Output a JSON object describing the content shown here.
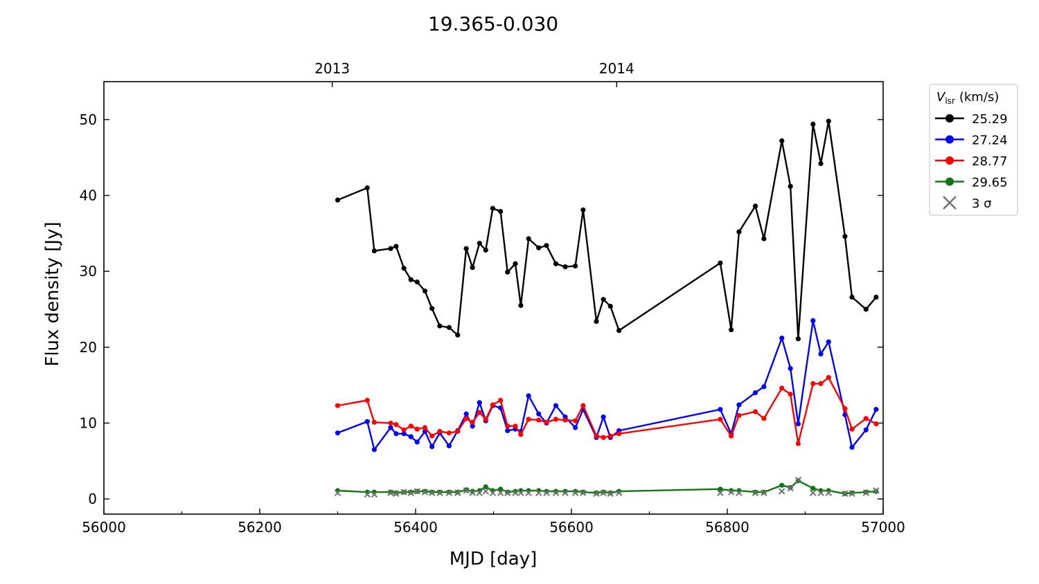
{
  "chart_data": {
    "type": "line",
    "title": "19.365-0.030",
    "xlabel": "MJD [day]",
    "ylabel": "Flux density [Jy]",
    "xlim": [
      56000,
      57000
    ],
    "ylim": [
      -2,
      55
    ],
    "xticks": [
      "56000",
      "56200",
      "56400",
      "56600",
      "56800",
      "57000"
    ],
    "yticks": [
      "0",
      "10",
      "20",
      "30",
      "40",
      "50"
    ],
    "top_axis": {
      "ticks": [
        "2013",
        "2014"
      ],
      "tick_x": [
        56293,
        56658
      ]
    },
    "grid": false,
    "legend": {
      "placement": "outside-right",
      "title_v": "V",
      "title_sub": "lsr",
      "title_units": "(km/s)",
      "sigma_label": "3 σ"
    },
    "x": [
      56300,
      56338,
      56347,
      56368,
      56375,
      56385,
      56394,
      56402,
      56412,
      56421,
      56431,
      56443,
      56454,
      56465,
      56473,
      56482,
      56490,
      56499,
      56509,
      56518,
      56528,
      56535,
      56545,
      56558,
      56568,
      56580,
      56592,
      56605,
      56615,
      56632,
      56641,
      56650,
      56661,
      56791,
      56805,
      56815,
      56836,
      56847,
      56870,
      56881,
      56891,
      56910,
      56920,
      56930,
      56951,
      56960,
      56978,
      56991
    ],
    "series": [
      {
        "name": "25.29",
        "color": "#000000",
        "values": [
          39.4,
          41.0,
          32.7,
          33.0,
          33.3,
          30.4,
          28.9,
          28.6,
          27.4,
          25.1,
          22.8,
          22.6,
          21.6,
          33.0,
          30.5,
          33.7,
          32.8,
          38.3,
          37.9,
          29.9,
          31.0,
          25.5,
          34.3,
          33.1,
          33.4,
          31.0,
          30.6,
          30.7,
          38.1,
          23.4,
          26.3,
          25.4,
          22.2,
          31.1,
          22.3,
          35.2,
          38.6,
          34.3,
          47.2,
          41.2,
          21.1,
          49.4,
          44.2,
          49.8,
          34.6,
          26.6,
          25.0,
          26.6
        ]
      },
      {
        "name": "27.24",
        "color": "#0000ff",
        "values": [
          8.7,
          10.2,
          6.5,
          9.4,
          8.6,
          8.6,
          8.2,
          7.5,
          8.9,
          6.9,
          8.7,
          7.0,
          9.0,
          11.2,
          9.6,
          12.7,
          10.3,
          12.3,
          12.0,
          9.0,
          9.2,
          8.9,
          13.6,
          11.2,
          10.0,
          12.3,
          10.8,
          9.4,
          11.8,
          8.1,
          10.8,
          8.1,
          9.0,
          11.8,
          8.6,
          12.4,
          14.0,
          14.8,
          21.2,
          17.2,
          9.9,
          23.5,
          19.1,
          20.7,
          11.1,
          6.8,
          9.1,
          11.8
        ]
      },
      {
        "name": "28.77",
        "color": "#ff0000",
        "values": [
          12.3,
          13.0,
          10.1,
          10.0,
          9.8,
          9.1,
          9.6,
          9.2,
          9.4,
          8.3,
          8.9,
          8.7,
          8.9,
          10.6,
          10.1,
          11.4,
          10.5,
          12.4,
          13.0,
          9.6,
          9.6,
          8.5,
          10.5,
          10.4,
          10.1,
          10.5,
          10.4,
          10.3,
          12.3,
          8.3,
          8.1,
          8.3,
          8.6,
          10.5,
          8.3,
          11.0,
          11.5,
          10.6,
          14.6,
          13.8,
          7.3,
          15.2,
          15.2,
          16.0,
          11.9,
          9.2,
          10.6,
          9.9
        ]
      },
      {
        "name": "29.65",
        "color": "#107810",
        "values": [
          1.1,
          0.9,
          0.9,
          0.9,
          0.8,
          0.9,
          0.9,
          1.0,
          1.0,
          0.9,
          0.9,
          0.9,
          0.9,
          1.2,
          1.0,
          1.1,
          1.6,
          1.1,
          1.3,
          0.9,
          1.0,
          1.1,
          1.1,
          1.1,
          1.0,
          1.0,
          1.0,
          1.0,
          0.9,
          0.8,
          0.9,
          0.8,
          1.0,
          1.3,
          1.1,
          1.1,
          0.9,
          0.9,
          1.8,
          1.5,
          2.4,
          1.4,
          1.1,
          1.1,
          0.7,
          0.8,
          0.9,
          1.0
        ]
      }
    ],
    "sigma3": {
      "name": "3 σ",
      "color": "#707070",
      "x": [
        56300,
        56338,
        56347,
        56368,
        56375,
        56385,
        56394,
        56402,
        56412,
        56421,
        56431,
        56443,
        56454,
        56465,
        56473,
        56482,
        56490,
        56499,
        56509,
        56518,
        56528,
        56535,
        56545,
        56558,
        56568,
        56580,
        56592,
        56605,
        56615,
        56632,
        56641,
        56650,
        56661,
        56791,
        56805,
        56815,
        56836,
        56847,
        56870,
        56881,
        56891,
        56910,
        56920,
        56930,
        56951,
        56960,
        56978,
        56991
      ],
      "values": [
        0.8,
        0.6,
        0.6,
        0.8,
        0.7,
        0.9,
        0.8,
        1.0,
        0.9,
        0.8,
        0.8,
        0.8,
        0.8,
        1.1,
        0.8,
        0.8,
        1.0,
        0.8,
        0.8,
        0.8,
        0.8,
        0.8,
        0.8,
        0.8,
        0.8,
        0.8,
        0.8,
        0.8,
        0.8,
        0.7,
        0.8,
        0.7,
        0.8,
        0.8,
        0.9,
        0.8,
        0.8,
        0.8,
        1.0,
        1.4,
        2.5,
        0.8,
        0.8,
        0.8,
        0.7,
        0.7,
        0.8,
        1.1
      ]
    }
  }
}
